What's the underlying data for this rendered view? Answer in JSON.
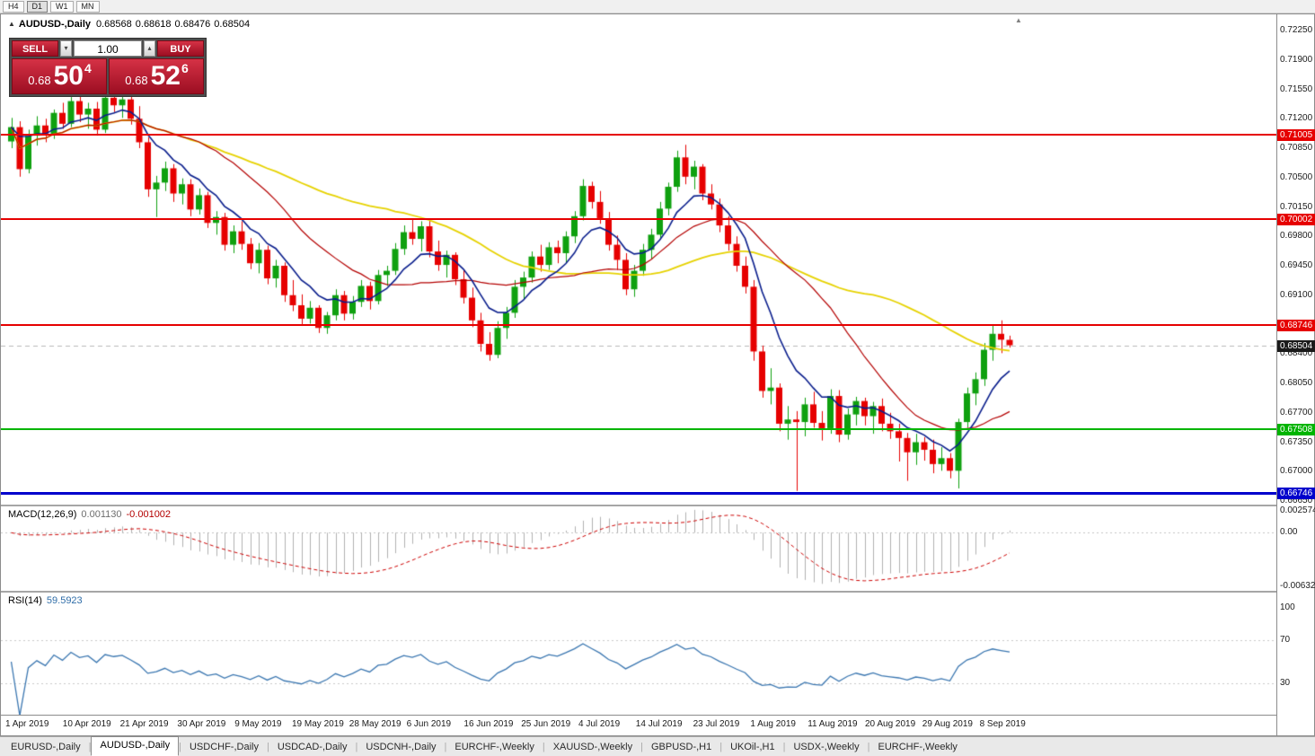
{
  "timeframe_toolbar": {
    "buttons": [
      "H4",
      "D1",
      "W1",
      "MN"
    ],
    "active": "D1"
  },
  "chart_header": {
    "symbol": "AUDUSD-,Daily",
    "open": "0.68568",
    "high": "0.68618",
    "low": "0.68476",
    "close": "0.68504"
  },
  "icons": {
    "collapse_marker": "▲",
    "shift_marker": "▲",
    "volume_up": "▴",
    "volume_down": "▾",
    "tab_separator": "|"
  },
  "trade_panel": {
    "sell_label": "SELL",
    "buy_label": "BUY",
    "volume": "1.00",
    "sell_price": {
      "prefix": "0.68",
      "big": "50",
      "sup": "4"
    },
    "buy_price": {
      "prefix": "0.68",
      "big": "52",
      "sup": "6"
    },
    "button_color": "#b8182f"
  },
  "price_axis": {
    "ticks": [
      "0.72250",
      "0.71900",
      "0.71550",
      "0.71200",
      "0.70850",
      "0.70500",
      "0.70150",
      "0.69800",
      "0.69450",
      "0.69100",
      "0.68750",
      "0.68400",
      "0.68050",
      "0.67700",
      "0.67350",
      "0.67000",
      "0.66650"
    ]
  },
  "levels": [
    {
      "value": 0.71005,
      "label": "0.71005",
      "color": "#e60000",
      "thickness": 2
    },
    {
      "value": 0.70002,
      "label": "0.70002",
      "color": "#e60000",
      "thickness": 2
    },
    {
      "value": 0.68746,
      "label": "0.68746",
      "color": "#e60000",
      "thickness": 2
    },
    {
      "value": 0.67508,
      "label": "0.67508",
      "color": "#00b400",
      "thickness": 2
    },
    {
      "value": 0.66746,
      "label": "0.66746",
      "color": "#0000cc",
      "thickness": 3
    }
  ],
  "bid_marker": {
    "value": 0.68504,
    "label": "0.68504",
    "color": "#1a1a1a",
    "line_color": "#b8b8b8"
  },
  "chart_data": {
    "type": "candlestick",
    "title": "AUDUSD-,Daily",
    "ylim": [
      0.6665,
      0.7225
    ],
    "up_color": "#0fa00f",
    "down_color": "#e60000",
    "moving_averages": [
      {
        "period": 45,
        "method": "sma",
        "color": "#e6d200",
        "width": 1.8
      },
      {
        "period": 20,
        "method": "sma",
        "color": "#b40000",
        "width": 1.2
      },
      {
        "period": 8,
        "method": "ema",
        "color": "#0a1e8c",
        "width": 1.6
      }
    ],
    "candles": [
      [
        0.7093,
        0.7121,
        0.7085,
        0.711
      ],
      [
        0.711,
        0.7117,
        0.7051,
        0.706
      ],
      [
        0.706,
        0.7107,
        0.7055,
        0.71
      ],
      [
        0.71,
        0.7123,
        0.7088,
        0.7112
      ],
      [
        0.7112,
        0.712,
        0.7092,
        0.7102
      ],
      [
        0.7102,
        0.7131,
        0.7096,
        0.7127
      ],
      [
        0.7127,
        0.7139,
        0.7108,
        0.7114
      ],
      [
        0.7114,
        0.7146,
        0.711,
        0.7141
      ],
      [
        0.7141,
        0.7148,
        0.7116,
        0.7125
      ],
      [
        0.7125,
        0.7139,
        0.7108,
        0.7132
      ],
      [
        0.7132,
        0.714,
        0.71,
        0.7107
      ],
      [
        0.7107,
        0.7153,
        0.7103,
        0.7145
      ],
      [
        0.7145,
        0.7155,
        0.7128,
        0.7136
      ],
      [
        0.7136,
        0.715,
        0.7121,
        0.7143
      ],
      [
        0.7143,
        0.7148,
        0.7113,
        0.712
      ],
      [
        0.712,
        0.7135,
        0.7085,
        0.7092
      ],
      [
        0.7092,
        0.7098,
        0.7027,
        0.7036
      ],
      [
        0.7036,
        0.7052,
        0.7003,
        0.7044
      ],
      [
        0.7044,
        0.7069,
        0.7034,
        0.7061
      ],
      [
        0.7061,
        0.7066,
        0.7021,
        0.7031
      ],
      [
        0.7031,
        0.7049,
        0.7018,
        0.7042
      ],
      [
        0.7042,
        0.7048,
        0.7004,
        0.7012
      ],
      [
        0.7012,
        0.7037,
        0.7006,
        0.7029
      ],
      [
        0.7029,
        0.7033,
        0.699,
        0.6996
      ],
      [
        0.6996,
        0.701,
        0.6982,
        0.7003
      ],
      [
        0.7003,
        0.7008,
        0.6963,
        0.697
      ],
      [
        0.697,
        0.6993,
        0.696,
        0.6986
      ],
      [
        0.6986,
        0.6998,
        0.6964,
        0.6971
      ],
      [
        0.6971,
        0.6978,
        0.6941,
        0.6948
      ],
      [
        0.6948,
        0.6972,
        0.6936,
        0.6964
      ],
      [
        0.6964,
        0.6969,
        0.6923,
        0.693
      ],
      [
        0.693,
        0.6952,
        0.6919,
        0.6945
      ],
      [
        0.6945,
        0.6949,
        0.6902,
        0.691
      ],
      [
        0.691,
        0.6928,
        0.6891,
        0.6898
      ],
      [
        0.6898,
        0.6911,
        0.6874,
        0.6882
      ],
      [
        0.6882,
        0.6903,
        0.6876,
        0.6895
      ],
      [
        0.6895,
        0.6898,
        0.6865,
        0.6871
      ],
      [
        0.6871,
        0.689,
        0.6864,
        0.6886
      ],
      [
        0.6886,
        0.6917,
        0.688,
        0.691
      ],
      [
        0.691,
        0.6915,
        0.688,
        0.6888
      ],
      [
        0.6888,
        0.6909,
        0.6881,
        0.6902
      ],
      [
        0.6902,
        0.6928,
        0.6896,
        0.6921
      ],
      [
        0.6921,
        0.6926,
        0.6893,
        0.6903
      ],
      [
        0.6903,
        0.694,
        0.6899,
        0.6934
      ],
      [
        0.6934,
        0.6945,
        0.6921,
        0.6939
      ],
      [
        0.6939,
        0.6972,
        0.6934,
        0.6965
      ],
      [
        0.6965,
        0.6993,
        0.6958,
        0.6985
      ],
      [
        0.6985,
        0.7001,
        0.697,
        0.6977
      ],
      [
        0.6977,
        0.6998,
        0.6962,
        0.6992
      ],
      [
        0.6992,
        0.7,
        0.6955,
        0.6962
      ],
      [
        0.6962,
        0.6975,
        0.6939,
        0.6946
      ],
      [
        0.6946,
        0.6963,
        0.6931,
        0.6958
      ],
      [
        0.6958,
        0.6961,
        0.6922,
        0.6929
      ],
      [
        0.6929,
        0.694,
        0.69,
        0.6907
      ],
      [
        0.6907,
        0.6919,
        0.6872,
        0.688
      ],
      [
        0.688,
        0.6889,
        0.6843,
        0.6852
      ],
      [
        0.6852,
        0.6866,
        0.6832,
        0.6839
      ],
      [
        0.6839,
        0.6879,
        0.6835,
        0.6871
      ],
      [
        0.6871,
        0.6896,
        0.6858,
        0.6889
      ],
      [
        0.6889,
        0.6928,
        0.6883,
        0.692
      ],
      [
        0.692,
        0.6938,
        0.6905,
        0.6931
      ],
      [
        0.6931,
        0.6962,
        0.6925,
        0.6956
      ],
      [
        0.6956,
        0.697,
        0.6938,
        0.6946
      ],
      [
        0.6946,
        0.6973,
        0.694,
        0.6967
      ],
      [
        0.6967,
        0.6975,
        0.6948,
        0.696
      ],
      [
        0.696,
        0.6986,
        0.6948,
        0.698
      ],
      [
        0.698,
        0.701,
        0.6972,
        0.7004
      ],
      [
        0.7004,
        0.7048,
        0.6999,
        0.704
      ],
      [
        0.704,
        0.7045,
        0.7013,
        0.7021
      ],
      [
        0.7021,
        0.7034,
        0.6995,
        0.7001
      ],
      [
        0.7001,
        0.7009,
        0.6963,
        0.697
      ],
      [
        0.697,
        0.6981,
        0.694,
        0.6952
      ],
      [
        0.6952,
        0.696,
        0.691,
        0.6917
      ],
      [
        0.6917,
        0.6946,
        0.6908,
        0.6939
      ],
      [
        0.6939,
        0.6971,
        0.6933,
        0.6964
      ],
      [
        0.6964,
        0.6989,
        0.6953,
        0.6982
      ],
      [
        0.6982,
        0.7021,
        0.6976,
        0.7013
      ],
      [
        0.7013,
        0.7044,
        0.7005,
        0.7039
      ],
      [
        0.7039,
        0.7082,
        0.7033,
        0.7074
      ],
      [
        0.7074,
        0.7089,
        0.7042,
        0.7051
      ],
      [
        0.7051,
        0.707,
        0.7036,
        0.7063
      ],
      [
        0.7063,
        0.7066,
        0.7023,
        0.7031
      ],
      [
        0.7031,
        0.7042,
        0.7012,
        0.7018
      ],
      [
        0.7018,
        0.7025,
        0.6985,
        0.6993
      ],
      [
        0.6993,
        0.7004,
        0.6963,
        0.6971
      ],
      [
        0.6971,
        0.698,
        0.6938,
        0.6945
      ],
      [
        0.6945,
        0.6956,
        0.6912,
        0.692
      ],
      [
        0.692,
        0.6928,
        0.6832,
        0.6843
      ],
      [
        0.6843,
        0.685,
        0.6788,
        0.6796
      ],
      [
        0.6796,
        0.6823,
        0.678,
        0.68
      ],
      [
        0.68,
        0.6805,
        0.6748,
        0.6757
      ],
      [
        0.6757,
        0.6778,
        0.6738,
        0.6762
      ],
      [
        0.6762,
        0.6772,
        0.6677,
        0.6759
      ],
      [
        0.6759,
        0.6788,
        0.6742,
        0.678
      ],
      [
        0.678,
        0.6795,
        0.6752,
        0.6758
      ],
      [
        0.6758,
        0.6772,
        0.6737,
        0.6751
      ],
      [
        0.6751,
        0.6798,
        0.6745,
        0.679
      ],
      [
        0.679,
        0.6797,
        0.6735,
        0.6744
      ],
      [
        0.6744,
        0.6775,
        0.6738,
        0.6768
      ],
      [
        0.6768,
        0.6789,
        0.6755,
        0.6784
      ],
      [
        0.6784,
        0.6788,
        0.6755,
        0.6766
      ],
      [
        0.6766,
        0.6783,
        0.6745,
        0.6778
      ],
      [
        0.6778,
        0.6787,
        0.6748,
        0.6757
      ],
      [
        0.6757,
        0.677,
        0.6739,
        0.6748
      ],
      [
        0.6748,
        0.6757,
        0.6712,
        0.674
      ],
      [
        0.674,
        0.6746,
        0.6689,
        0.6723
      ],
      [
        0.6723,
        0.6745,
        0.6708,
        0.6735
      ],
      [
        0.6735,
        0.6741,
        0.6713,
        0.6726
      ],
      [
        0.6726,
        0.6738,
        0.6698,
        0.6709
      ],
      [
        0.6709,
        0.6729,
        0.6701,
        0.6716
      ],
      [
        0.6716,
        0.6722,
        0.6692,
        0.6701
      ],
      [
        0.6701,
        0.6763,
        0.668,
        0.6759
      ],
      [
        0.6759,
        0.68,
        0.6752,
        0.6793
      ],
      [
        0.6793,
        0.6818,
        0.6779,
        0.681
      ],
      [
        0.681,
        0.6853,
        0.6802,
        0.6845
      ],
      [
        0.6845,
        0.6875,
        0.6832,
        0.6864
      ],
      [
        0.6864,
        0.688,
        0.6841,
        0.6857
      ],
      [
        0.68568,
        0.68618,
        0.68476,
        0.68504
      ]
    ]
  },
  "macd_panel": {
    "title": "MACD(12,26,9)",
    "value_main": "0.001130",
    "value_signal": "-0.001002",
    "fast": 12,
    "slow": 26,
    "signal": 9,
    "max": 0.002574,
    "min": -0.006326,
    "axis": [
      {
        "label": "0.002574",
        "value": 0.002574
      },
      {
        "label": "0.00",
        "value": 0
      },
      {
        "label": "-0.006326",
        "value": -0.006326
      }
    ],
    "histogram_color": "#b0b0b0",
    "signal_color": "#cc0000"
  },
  "rsi_panel": {
    "title": "RSI(14)",
    "value": "59.5923",
    "period": 14,
    "axis": [
      {
        "label": "100",
        "value": 100
      },
      {
        "label": "70",
        "value": 70
      },
      {
        "label": "30",
        "value": 30
      }
    ],
    "level_lines": [
      70,
      30
    ],
    "line_color": "#3a76b0"
  },
  "date_axis": {
    "labels": [
      "1 Apr 2019",
      "10 Apr 2019",
      "21 Apr 2019",
      "30 Apr 2019",
      "9 May 2019",
      "19 May 2019",
      "28 May 2019",
      "6 Jun 2019",
      "16 Jun 2019",
      "25 Jun 2019",
      "4 Jul 2019",
      "14 Jul 2019",
      "23 Jul 2019",
      "1 Aug 2019",
      "11 Aug 2019",
      "20 Aug 2019",
      "29 Aug 2019",
      "8 Sep 2019"
    ]
  },
  "tab_bar": {
    "tabs": [
      {
        "label": "EURUSD-,Daily",
        "active": false
      },
      {
        "label": "AUDUSD-,Daily",
        "active": true
      },
      {
        "label": "USDCHF-,Daily",
        "active": false
      },
      {
        "label": "USDCAD-,Daily",
        "active": false
      },
      {
        "label": "USDCNH-,Daily",
        "active": false
      },
      {
        "label": "EURCHF-,Weekly",
        "active": false
      },
      {
        "label": "XAUUSD-,Weekly",
        "active": false
      },
      {
        "label": "GBPUSD-,H1",
        "active": false
      },
      {
        "label": "UKOil-,H1",
        "active": false
      },
      {
        "label": "USDX-,Weekly",
        "active": false
      },
      {
        "label": "EURCHF-,Weekly",
        "active": false
      }
    ]
  }
}
